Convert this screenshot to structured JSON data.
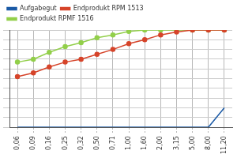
{
  "chart_data": {
    "type": "line",
    "categories": [
      "0,06",
      "0,09",
      "0,16",
      "0,25",
      "0,32",
      "0,50",
      "0,71",
      "1,00",
      "1,60",
      "2,00",
      "3,15",
      "5,00",
      "8,00",
      "11,20"
    ],
    "series": [
      {
        "name": "Aufgabegut",
        "color": "#1b5aa6",
        "marker": "none",
        "line_style": "solid",
        "values": [
          0,
          0,
          0,
          0,
          0,
          0,
          0,
          0,
          0,
          0,
          0,
          0,
          0,
          20
        ]
      },
      {
        "name": "Endprodukt RPM 1513",
        "color": "#d6442a",
        "marker": "circle",
        "line_style": "solid",
        "values": [
          52,
          56,
          62,
          67,
          70,
          75,
          80,
          86,
          90,
          95,
          98,
          100,
          100,
          100
        ]
      },
      {
        "name": "Endprodukt RPMF 1516",
        "color": "#92cf4a",
        "marker": "circle",
        "line_style": "solid",
        "values": [
          67,
          70,
          77,
          83,
          87,
          92,
          95,
          98.5,
          100,
          100,
          100,
          100,
          100,
          100
        ]
      }
    ],
    "ylim": [
      0,
      100
    ],
    "yticks": [
      0,
      10,
      20,
      30,
      40,
      50,
      60,
      70,
      80,
      90,
      100
    ],
    "grid": true,
    "legend": "upper left",
    "tick_labels": "x"
  }
}
